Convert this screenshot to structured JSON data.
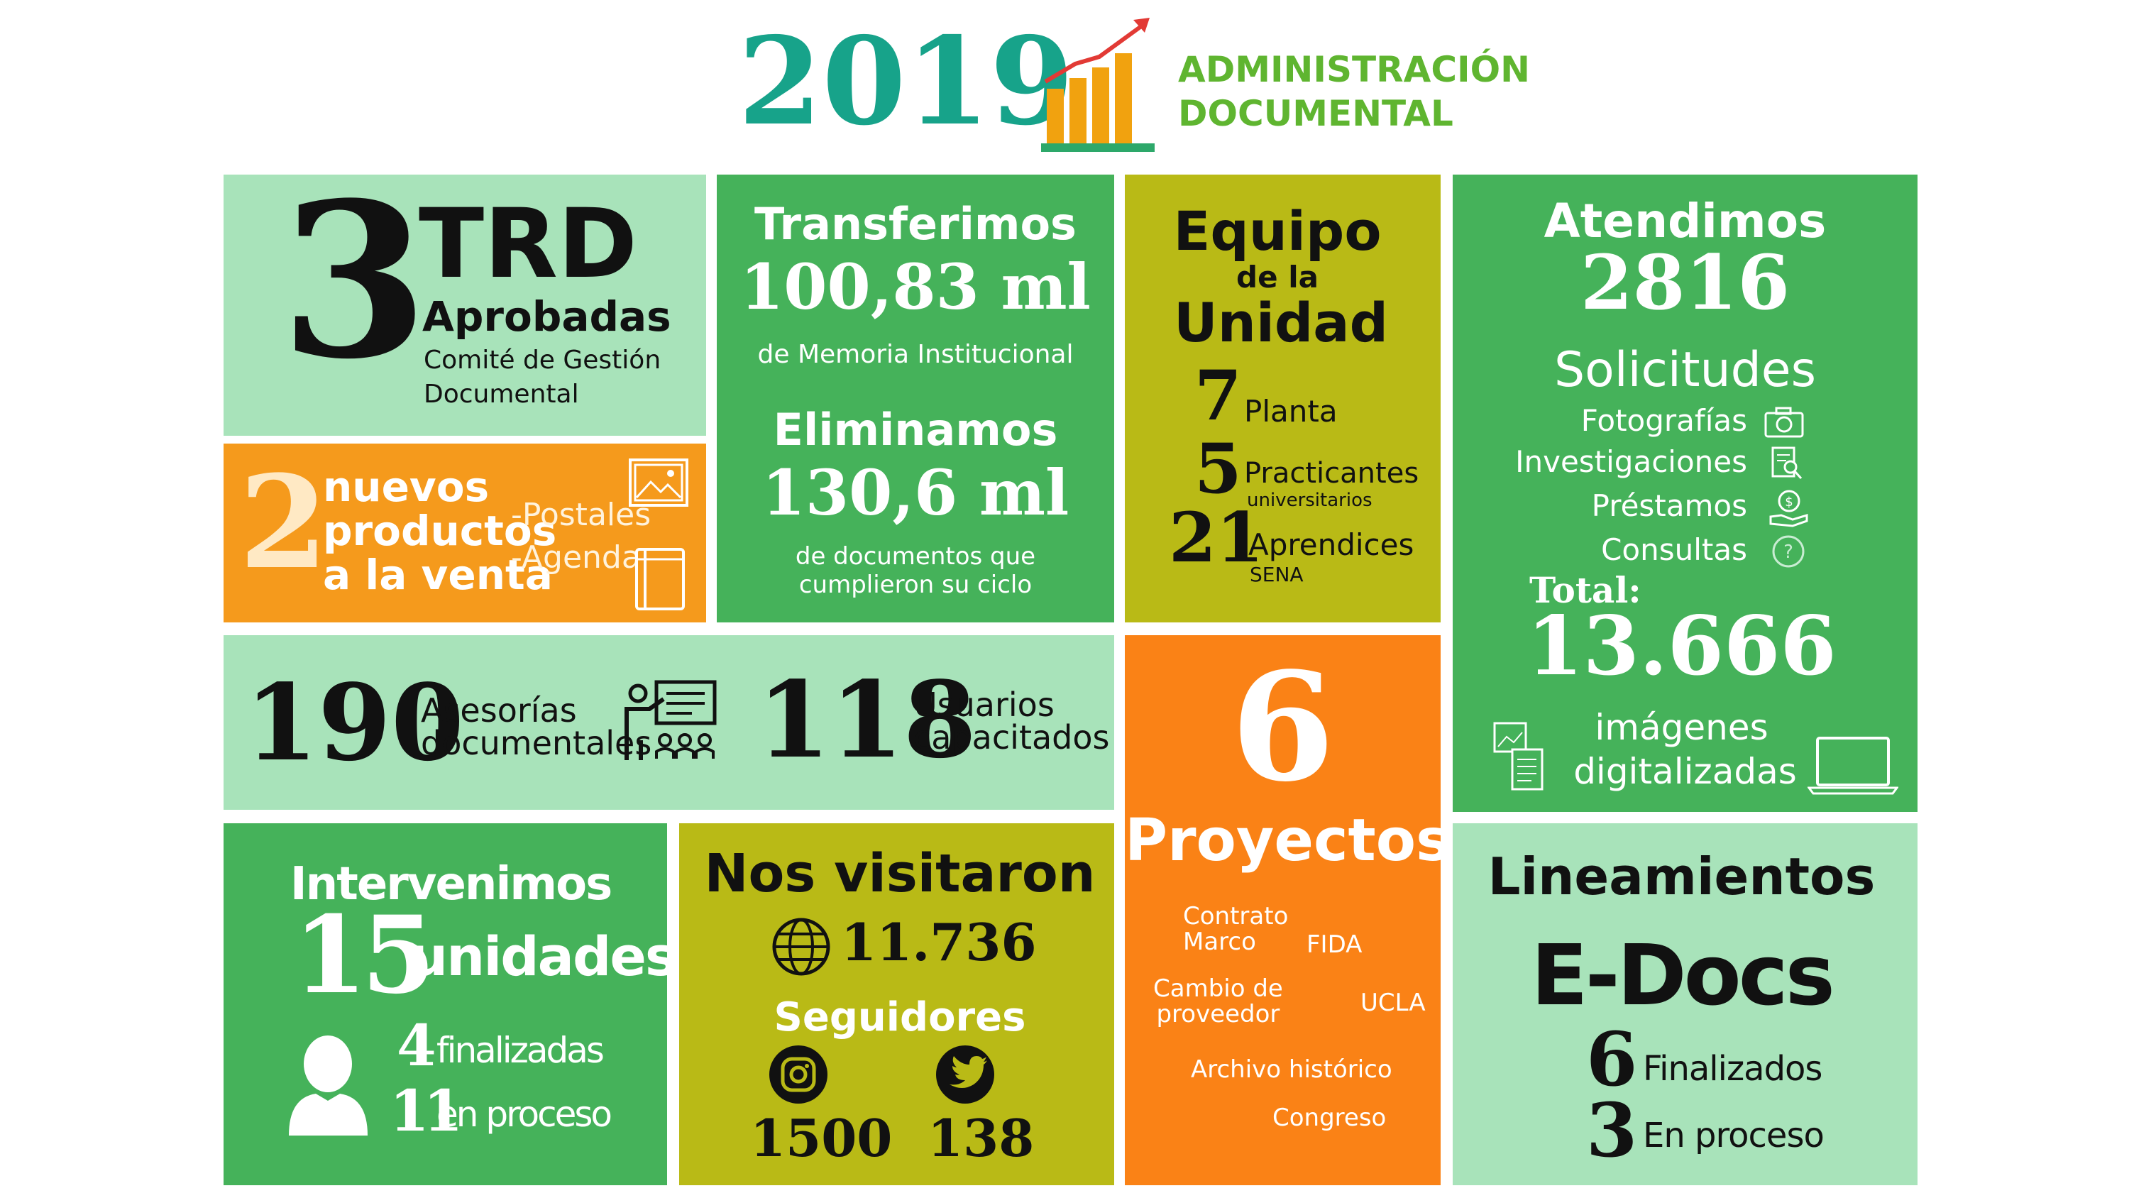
{
  "colors": {
    "teal": "#17a38a",
    "green": "#45b25a",
    "light_green": "#a8e3ba",
    "orange": "#f59a1c",
    "bright_orange": "#fa8216",
    "olive": "#b9ba16",
    "chart_orange": "#f1a20f",
    "chart_red": "#e23a35"
  },
  "header": {
    "year": "2019",
    "title_line1": "ADMINISTRACIÓN",
    "title_line2": "DOCUMENTAL",
    "icon": "growth-chart-icon"
  },
  "trd": {
    "number": "3",
    "title": "TRD",
    "subtitle": "Aprobadas",
    "desc_line1": "Comité de Gestión",
    "desc_line2": "Documental"
  },
  "productos": {
    "number": "2",
    "line1": "nuevos",
    "line2": "productos",
    "line3": "a la venta",
    "item1": "-Postales",
    "item2": "-Agenda",
    "icons": [
      "picture-frame-icon",
      "book-icon"
    ]
  },
  "transferencias": {
    "title": "Transferimos",
    "value": "100,83 ml",
    "desc": "de Memoria Institucional",
    "title2": "Eliminamos",
    "value2": "130,6 ml",
    "desc2_line1": "de documentos que",
    "desc2_line2": "cumplieron su ciclo"
  },
  "equipo": {
    "title_line1": "Equipo",
    "title_line2": "de la",
    "title_line3": "Unidad",
    "rows": [
      {
        "number": "7",
        "label": "Planta",
        "sub": ""
      },
      {
        "number": "5",
        "label": "Practicantes",
        "sub": "universitarios"
      },
      {
        "number": "21",
        "label": "Aprendices",
        "sub": "SENA"
      }
    ]
  },
  "atendimos": {
    "title": "Atendimos",
    "number": "2816",
    "label": "Solicitudes",
    "items": [
      {
        "label": "Fotografías",
        "icon": "camera-icon"
      },
      {
        "label": "Investigaciones",
        "icon": "document-search-icon"
      },
      {
        "label": "Préstamos",
        "icon": "hand-money-icon"
      },
      {
        "label": "Consultas",
        "icon": "question-icon"
      }
    ],
    "total_label": "Total:",
    "total_value": "13.666",
    "images_line1": "imágenes",
    "images_line2": "digitalizadas",
    "icons": [
      "scanned-documents-icon",
      "laptop-icon"
    ]
  },
  "asesorias": {
    "number": "190",
    "label_line1": "Asesorías",
    "label_line2": "documentales",
    "icon": "training-presentation-icon",
    "number2": "118",
    "label2_line1": "Usuarios",
    "label2_line2": "capacitados"
  },
  "proyectos": {
    "number": "6",
    "title": "Proyectos",
    "items": [
      "Contrato\nMarco",
      "FIDA",
      "Cambio de\nproveedor",
      "UCLA",
      "Archivo histórico",
      "Congreso"
    ]
  },
  "intervenimos": {
    "title": "Intervenimos",
    "number": "15",
    "unit": "unidades",
    "icon": "user-icon",
    "rows": [
      {
        "number": "4",
        "label": "finalizadas"
      },
      {
        "number": "11",
        "label": "en proceso"
      }
    ]
  },
  "visitaron": {
    "title": "Nos visitaron",
    "visits": "11.736",
    "followers_title": "Seguidores",
    "instagram": "1500",
    "twitter": "138"
  },
  "lineamientos": {
    "title": "Lineamientos",
    "name": "E-Docs",
    "rows": [
      {
        "number": "6",
        "label": "Finalizados"
      },
      {
        "number": "3",
        "label": "En proceso"
      }
    ]
  }
}
